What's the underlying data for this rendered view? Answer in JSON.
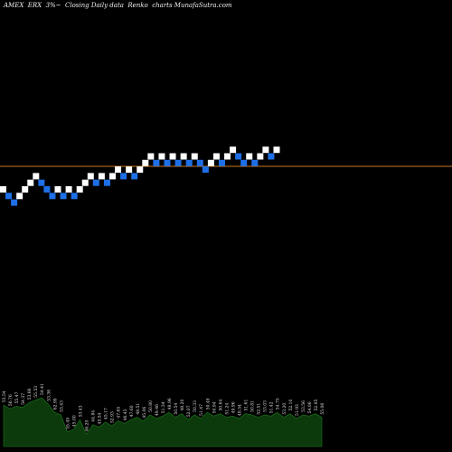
{
  "chart_data": {
    "type": "renko",
    "title": "AMEX  ERX  3%~  Closing Daily data  Renko  charts MunafaSutra.com",
    "ticker": "ERX",
    "exchange": "AMEX",
    "colors": {
      "background": "#000000",
      "up_brick": "#ffffff",
      "down_brick": "#1e6fe6",
      "reference_line": "#c8781e",
      "volume_fill": "#0c3a0c",
      "volume_stroke": "#1e7a1e",
      "label_text": "#e0e0e0"
    },
    "bricks": [
      {
        "dir": "up",
        "level": 0
      },
      {
        "dir": "down",
        "level": -1
      },
      {
        "dir": "down",
        "level": -2
      },
      {
        "dir": "up",
        "level": -1
      },
      {
        "dir": "up",
        "level": 0
      },
      {
        "dir": "up",
        "level": 1
      },
      {
        "dir": "up",
        "level": 2
      },
      {
        "dir": "down",
        "level": 1
      },
      {
        "dir": "down",
        "level": 0
      },
      {
        "dir": "down",
        "level": -1
      },
      {
        "dir": "up",
        "level": 0
      },
      {
        "dir": "down",
        "level": -1
      },
      {
        "dir": "up",
        "level": 0
      },
      {
        "dir": "down",
        "level": -1
      },
      {
        "dir": "up",
        "level": 0
      },
      {
        "dir": "up",
        "level": 1
      },
      {
        "dir": "up",
        "level": 2
      },
      {
        "dir": "down",
        "level": 1
      },
      {
        "dir": "up",
        "level": 2
      },
      {
        "dir": "down",
        "level": 1
      },
      {
        "dir": "up",
        "level": 2
      },
      {
        "dir": "up",
        "level": 3
      },
      {
        "dir": "down",
        "level": 2
      },
      {
        "dir": "up",
        "level": 3
      },
      {
        "dir": "down",
        "level": 2
      },
      {
        "dir": "up",
        "level": 3
      },
      {
        "dir": "up",
        "level": 4
      },
      {
        "dir": "up",
        "level": 5
      },
      {
        "dir": "down",
        "level": 4
      },
      {
        "dir": "up",
        "level": 5
      },
      {
        "dir": "down",
        "level": 4
      },
      {
        "dir": "up",
        "level": 5
      },
      {
        "dir": "down",
        "level": 4
      },
      {
        "dir": "up",
        "level": 5
      },
      {
        "dir": "down",
        "level": 4
      },
      {
        "dir": "up",
        "level": 5
      },
      {
        "dir": "down",
        "level": 4
      },
      {
        "dir": "down",
        "level": 3
      },
      {
        "dir": "up",
        "level": 4
      },
      {
        "dir": "up",
        "level": 5
      },
      {
        "dir": "down",
        "level": 4
      },
      {
        "dir": "up",
        "level": 5
      },
      {
        "dir": "up",
        "level": 6
      },
      {
        "dir": "down",
        "level": 5
      },
      {
        "dir": "down",
        "level": 4
      },
      {
        "dir": "up",
        "level": 5
      },
      {
        "dir": "down",
        "level": 4
      },
      {
        "dir": "up",
        "level": 5
      },
      {
        "dir": "up",
        "level": 6
      },
      {
        "dir": "down",
        "level": 5
      },
      {
        "dir": "up",
        "level": 6
      }
    ],
    "reference_level": 3.5,
    "volume": [
      34,
      31,
      33,
      32,
      36,
      38,
      40,
      35,
      28,
      26,
      12,
      14,
      22,
      10,
      18,
      16,
      20,
      17,
      21,
      19,
      22,
      24,
      21,
      26,
      23,
      25,
      28,
      24,
      27,
      22,
      26,
      23,
      28,
      25,
      27,
      24,
      25,
      23,
      27,
      26,
      24,
      26,
      25,
      28,
      24,
      27,
      23,
      26,
      25,
      27,
      24
    ],
    "volume_labels": [
      "53.54",
      "56.76",
      "55.47",
      "54.37",
      "53.66",
      "55.53",
      "54.41",
      "53.36",
      "62.99",
      "53.43",
      "55.49",
      "45.00",
      "53.43",
      "46.20",
      "44.84",
      "45.54",
      "45.17",
      "52.93",
      "47.65",
      "46.43",
      "47.60",
      "48.51",
      "45.06",
      "50.80",
      "49.46",
      "51.34",
      "48.96",
      "50.54",
      "48.20",
      "52.07",
      "50.33",
      "51.47",
      "50.49",
      "50.94",
      "50.64",
      "51.24",
      "49.96",
      "48.54",
      "51.61",
      "50.81",
      "52.51",
      "53.03",
      "51.42",
      "54.75",
      "53.20",
      "52.10",
      "51.93",
      "53.56",
      "54.06",
      "52.95",
      "55.06"
    ]
  }
}
